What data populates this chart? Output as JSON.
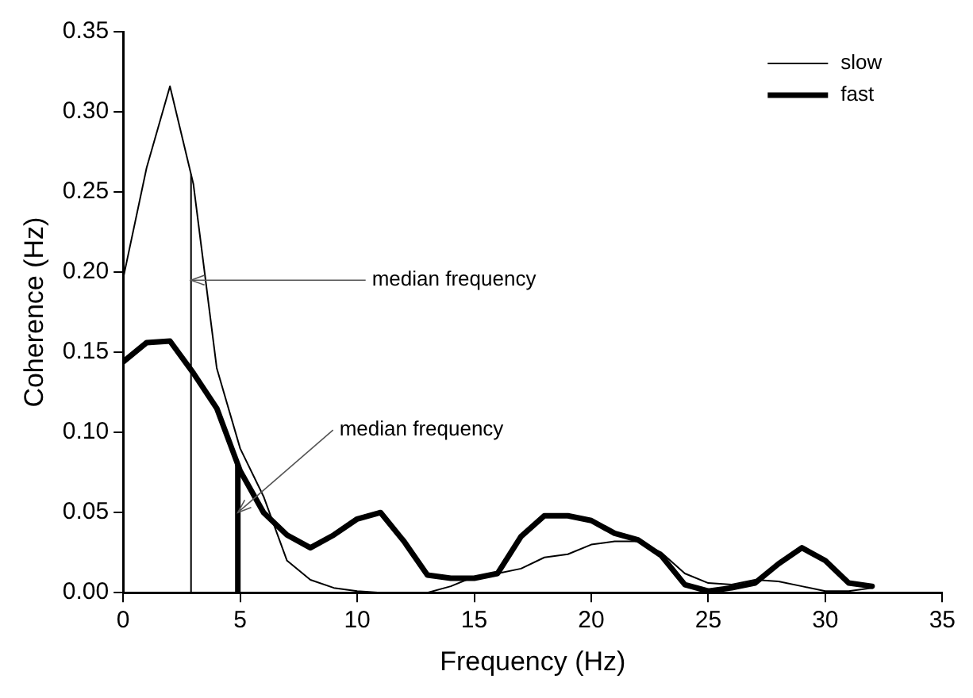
{
  "chart_data": {
    "type": "line",
    "xlabel": "Frequency (Hz)",
    "ylabel": "Coherence (Hz)",
    "x": [
      0,
      1,
      2,
      3,
      4,
      5,
      6,
      7,
      8,
      9,
      10,
      11,
      12,
      13,
      14,
      15,
      16,
      17,
      18,
      19,
      20,
      21,
      22,
      23,
      24,
      25,
      26,
      27,
      28,
      29,
      30,
      31,
      32
    ],
    "series": [
      {
        "name": "slow",
        "color": "#000000",
        "values": [
          0.196,
          0.265,
          0.316,
          0.255,
          0.14,
          0.09,
          0.06,
          0.02,
          0.008,
          0.003,
          0.001,
          0,
          0,
          0,
          0.004,
          0.01,
          0.012,
          0.015,
          0.022,
          0.024,
          0.03,
          0.032,
          0.032,
          0.025,
          0.012,
          0.006,
          0.005,
          0.008,
          0.007,
          0.004,
          0.001,
          0.001,
          0.003
        ]
      },
      {
        "name": "fast",
        "color": "#000000",
        "values": [
          0.144,
          0.156,
          0.157,
          0.137,
          0.115,
          0.076,
          0.05,
          0.036,
          0.028,
          0.036,
          0.046,
          0.05,
          0.032,
          0.011,
          0.009,
          0.009,
          0.012,
          0.035,
          0.048,
          0.048,
          0.045,
          0.037,
          0.033,
          0.023,
          0.005,
          0.001,
          0.003,
          0.006,
          0.018,
          0.028,
          0.02,
          0.006,
          0.004
        ]
      }
    ],
    "ref_lines": [
      {
        "axis": "x",
        "value": 2.9,
        "color": "#000000"
      },
      {
        "axis": "x",
        "value": 4.9,
        "color": "#000000"
      }
    ],
    "annotations": [
      {
        "text": "median frequency",
        "x": 2.9,
        "y": 0.195
      },
      {
        "text": "median frequency",
        "x": 4.9,
        "y": 0.05
      }
    ],
    "xlim": [
      0,
      35
    ],
    "xticks": [
      0,
      5,
      10,
      15,
      20,
      25,
      30,
      35
    ],
    "ylim": [
      0,
      0.35
    ],
    "yticks": [
      {
        "value": 0,
        "label": "0.00"
      },
      {
        "value": 0.05,
        "label": "0.05"
      },
      {
        "value": 0.1,
        "label": "0.10"
      },
      {
        "value": 0.15,
        "label": "0.15"
      },
      {
        "value": 0.2,
        "label": "0.20"
      },
      {
        "value": 0.25,
        "label": "0.25"
      },
      {
        "value": 0.3,
        "label": "0.30"
      },
      {
        "value": 0.35,
        "label": "0.35"
      }
    ],
    "grid": false,
    "legend": "top right",
    "marker": "none",
    "line_style": "solid"
  }
}
